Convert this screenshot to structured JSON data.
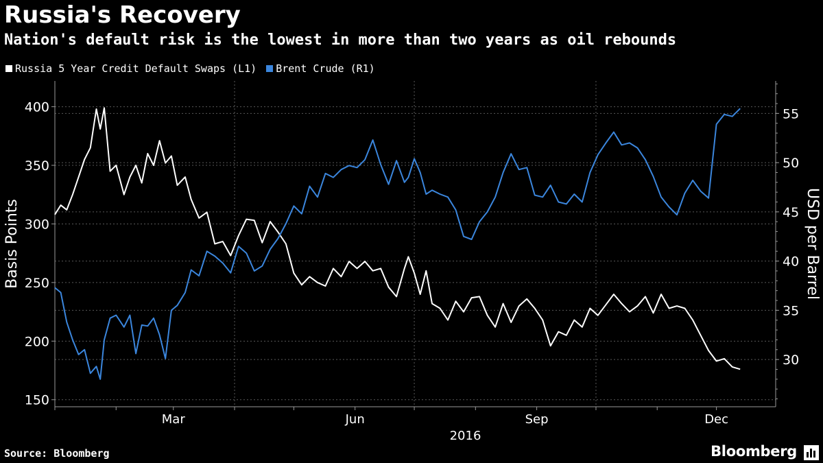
{
  "header": {
    "title": "Russia's Recovery",
    "subtitle": "Nation's default risk is the lowest in more than two years as oil rebounds"
  },
  "footer": {
    "source": "Source: Bloomberg",
    "brand": "Bloomberg",
    "brand_icon": "bar-chart-icon"
  },
  "colors": {
    "background": "#000000",
    "cds": "#ffffff",
    "brent": "#3b86dd",
    "grid": "#5a5a5a",
    "axis": "#9a9a9a"
  },
  "chart_data": {
    "type": "line",
    "title": "Russia's Recovery",
    "subtitle": "Nation's default risk is the lowest in more than two years as oil rebounds",
    "xlabel": "2016",
    "x_tick_labels": [
      "Mar",
      "Jun",
      "Sep",
      "Dec"
    ],
    "x_tick_dates": [
      "2016-03-01",
      "2016-06-01",
      "2016-09-01",
      "2016-12-01"
    ],
    "x_range": [
      "2016-01-01",
      "2016-12-31"
    ],
    "y_left": {
      "label": "Basis Points",
      "ticks": [
        150,
        200,
        250,
        300,
        350,
        400
      ],
      "range": [
        144,
        422
      ]
    },
    "y_right": {
      "label": "USD per Barrel",
      "ticks": [
        30,
        35,
        40,
        45,
        50,
        55
      ],
      "range": [
        25.2,
        58.3
      ]
    },
    "grid": true,
    "legend_position": "top-left",
    "series": [
      {
        "name": "Russia 5 Year Credit Default Swaps (L1)",
        "axis": "left",
        "points": [
          [
            "2016-01-01",
            308
          ],
          [
            "2016-01-04",
            316
          ],
          [
            "2016-01-07",
            312
          ],
          [
            "2016-01-10",
            325
          ],
          [
            "2016-01-13",
            340
          ],
          [
            "2016-01-16",
            355
          ],
          [
            "2016-01-19",
            365
          ],
          [
            "2016-01-22",
            398
          ],
          [
            "2016-01-24",
            381
          ],
          [
            "2016-01-26",
            399
          ],
          [
            "2016-01-29",
            345
          ],
          [
            "2016-02-01",
            350
          ],
          [
            "2016-02-05",
            325
          ],
          [
            "2016-02-08",
            340
          ],
          [
            "2016-02-11",
            350
          ],
          [
            "2016-02-14",
            335
          ],
          [
            "2016-02-17",
            360
          ],
          [
            "2016-02-20",
            350
          ],
          [
            "2016-02-23",
            371
          ],
          [
            "2016-02-26",
            352
          ],
          [
            "2016-02-29",
            358
          ],
          [
            "2016-03-03",
            333
          ],
          [
            "2016-03-07",
            340
          ],
          [
            "2016-03-10",
            321
          ],
          [
            "2016-03-14",
            305
          ],
          [
            "2016-03-18",
            310
          ],
          [
            "2016-03-22",
            283
          ],
          [
            "2016-03-26",
            285
          ],
          [
            "2016-03-30",
            273
          ],
          [
            "2016-04-03",
            290
          ],
          [
            "2016-04-07",
            304
          ],
          [
            "2016-04-11",
            303
          ],
          [
            "2016-04-15",
            284
          ],
          [
            "2016-04-19",
            302
          ],
          [
            "2016-04-23",
            293
          ],
          [
            "2016-04-27",
            283
          ],
          [
            "2016-05-01",
            258
          ],
          [
            "2016-05-05",
            248
          ],
          [
            "2016-05-09",
            255
          ],
          [
            "2016-05-13",
            250
          ],
          [
            "2016-05-17",
            247
          ],
          [
            "2016-05-21",
            262
          ],
          [
            "2016-05-25",
            255
          ],
          [
            "2016-05-29",
            268
          ],
          [
            "2016-06-02",
            262
          ],
          [
            "2016-06-06",
            268
          ],
          [
            "2016-06-10",
            260
          ],
          [
            "2016-06-14",
            262
          ],
          [
            "2016-06-18",
            246
          ],
          [
            "2016-06-22",
            238
          ],
          [
            "2016-06-26",
            262
          ],
          [
            "2016-06-28",
            272
          ],
          [
            "2016-07-01",
            258
          ],
          [
            "2016-07-04",
            240
          ],
          [
            "2016-07-07",
            260
          ],
          [
            "2016-07-10",
            232
          ],
          [
            "2016-07-14",
            228
          ],
          [
            "2016-07-18",
            218
          ],
          [
            "2016-07-22",
            234
          ],
          [
            "2016-07-26",
            225
          ],
          [
            "2016-07-30",
            237
          ],
          [
            "2016-08-03",
            238
          ],
          [
            "2016-08-07",
            222
          ],
          [
            "2016-08-11",
            212
          ],
          [
            "2016-08-15",
            232
          ],
          [
            "2016-08-19",
            216
          ],
          [
            "2016-08-23",
            230
          ],
          [
            "2016-08-27",
            236
          ],
          [
            "2016-08-31",
            228
          ],
          [
            "2016-09-04",
            218
          ],
          [
            "2016-09-08",
            196
          ],
          [
            "2016-09-12",
            208
          ],
          [
            "2016-09-16",
            205
          ],
          [
            "2016-09-20",
            218
          ],
          [
            "2016-09-24",
            212
          ],
          [
            "2016-09-28",
            228
          ],
          [
            "2016-10-02",
            222
          ],
          [
            "2016-10-06",
            231
          ],
          [
            "2016-10-10",
            240
          ],
          [
            "2016-10-14",
            232
          ],
          [
            "2016-10-18",
            225
          ],
          [
            "2016-10-22",
            230
          ],
          [
            "2016-10-26",
            238
          ],
          [
            "2016-10-30",
            224
          ],
          [
            "2016-11-03",
            240
          ],
          [
            "2016-11-07",
            228
          ],
          [
            "2016-11-11",
            230
          ],
          [
            "2016-11-15",
            228
          ],
          [
            "2016-11-19",
            218
          ],
          [
            "2016-11-23",
            205
          ],
          [
            "2016-11-27",
            192
          ],
          [
            "2016-12-01",
            183
          ],
          [
            "2016-12-05",
            185
          ],
          [
            "2016-12-09",
            178
          ],
          [
            "2016-12-13",
            176
          ]
        ]
      },
      {
        "name": "Brent Crude (R1)",
        "axis": "right",
        "points": [
          [
            "2016-01-01",
            37.3
          ],
          [
            "2016-01-04",
            36.8
          ],
          [
            "2016-01-07",
            33.8
          ],
          [
            "2016-01-10",
            32.0
          ],
          [
            "2016-01-13",
            30.5
          ],
          [
            "2016-01-16",
            31.0
          ],
          [
            "2016-01-19",
            28.6
          ],
          [
            "2016-01-22",
            29.3
          ],
          [
            "2016-01-24",
            28.0
          ],
          [
            "2016-01-26",
            32.0
          ],
          [
            "2016-01-29",
            34.2
          ],
          [
            "2016-02-01",
            34.5
          ],
          [
            "2016-02-05",
            33.3
          ],
          [
            "2016-02-08",
            34.5
          ],
          [
            "2016-02-11",
            30.6
          ],
          [
            "2016-02-14",
            33.5
          ],
          [
            "2016-02-17",
            33.4
          ],
          [
            "2016-02-20",
            34.2
          ],
          [
            "2016-02-23",
            32.5
          ],
          [
            "2016-02-26",
            30.1
          ],
          [
            "2016-02-29",
            35.0
          ],
          [
            "2016-03-03",
            35.5
          ],
          [
            "2016-03-07",
            36.8
          ],
          [
            "2016-03-10",
            39.1
          ],
          [
            "2016-03-14",
            38.5
          ],
          [
            "2016-03-18",
            41.0
          ],
          [
            "2016-03-22",
            40.5
          ],
          [
            "2016-03-26",
            39.8
          ],
          [
            "2016-03-30",
            38.8
          ],
          [
            "2016-04-03",
            41.5
          ],
          [
            "2016-04-07",
            40.8
          ],
          [
            "2016-04-11",
            39.0
          ],
          [
            "2016-04-15",
            39.5
          ],
          [
            "2016-04-19",
            41.2
          ],
          [
            "2016-04-23",
            42.3
          ],
          [
            "2016-04-27",
            43.8
          ],
          [
            "2016-05-01",
            45.6
          ],
          [
            "2016-05-05",
            44.8
          ],
          [
            "2016-05-09",
            47.6
          ],
          [
            "2016-05-13",
            46.5
          ],
          [
            "2016-05-17",
            48.9
          ],
          [
            "2016-05-21",
            48.5
          ],
          [
            "2016-05-25",
            49.3
          ],
          [
            "2016-05-29",
            49.7
          ],
          [
            "2016-06-02",
            49.5
          ],
          [
            "2016-06-06",
            50.3
          ],
          [
            "2016-06-10",
            52.3
          ],
          [
            "2016-06-14",
            49.8
          ],
          [
            "2016-06-18",
            47.8
          ],
          [
            "2016-06-22",
            50.2
          ],
          [
            "2016-06-26",
            48.0
          ],
          [
            "2016-06-28",
            48.5
          ],
          [
            "2016-07-01",
            50.4
          ],
          [
            "2016-07-04",
            49.0
          ],
          [
            "2016-07-07",
            46.8
          ],
          [
            "2016-07-10",
            47.2
          ],
          [
            "2016-07-14",
            46.8
          ],
          [
            "2016-07-18",
            46.5
          ],
          [
            "2016-07-22",
            45.2
          ],
          [
            "2016-07-26",
            42.5
          ],
          [
            "2016-07-30",
            42.2
          ],
          [
            "2016-08-03",
            44.0
          ],
          [
            "2016-08-07",
            45.0
          ],
          [
            "2016-08-11",
            46.5
          ],
          [
            "2016-08-15",
            49.0
          ],
          [
            "2016-08-19",
            50.9
          ],
          [
            "2016-08-23",
            49.3
          ],
          [
            "2016-08-27",
            49.5
          ],
          [
            "2016-08-31",
            46.7
          ],
          [
            "2016-09-04",
            46.5
          ],
          [
            "2016-09-08",
            47.7
          ],
          [
            "2016-09-12",
            46.0
          ],
          [
            "2016-09-16",
            45.8
          ],
          [
            "2016-09-20",
            46.8
          ],
          [
            "2016-09-24",
            46.0
          ],
          [
            "2016-09-28",
            49.0
          ],
          [
            "2016-10-02",
            50.8
          ],
          [
            "2016-10-06",
            52.0
          ],
          [
            "2016-10-10",
            53.1
          ],
          [
            "2016-10-14",
            51.8
          ],
          [
            "2016-10-18",
            52.0
          ],
          [
            "2016-10-22",
            51.5
          ],
          [
            "2016-10-26",
            50.3
          ],
          [
            "2016-10-30",
            48.6
          ],
          [
            "2016-11-03",
            46.5
          ],
          [
            "2016-11-07",
            45.5
          ],
          [
            "2016-11-11",
            44.7
          ],
          [
            "2016-11-15",
            46.9
          ],
          [
            "2016-11-19",
            48.2
          ],
          [
            "2016-11-23",
            47.1
          ],
          [
            "2016-11-27",
            46.4
          ],
          [
            "2016-12-01",
            53.9
          ],
          [
            "2016-12-05",
            54.9
          ],
          [
            "2016-12-09",
            54.7
          ],
          [
            "2016-12-13",
            55.5
          ]
        ]
      }
    ]
  }
}
